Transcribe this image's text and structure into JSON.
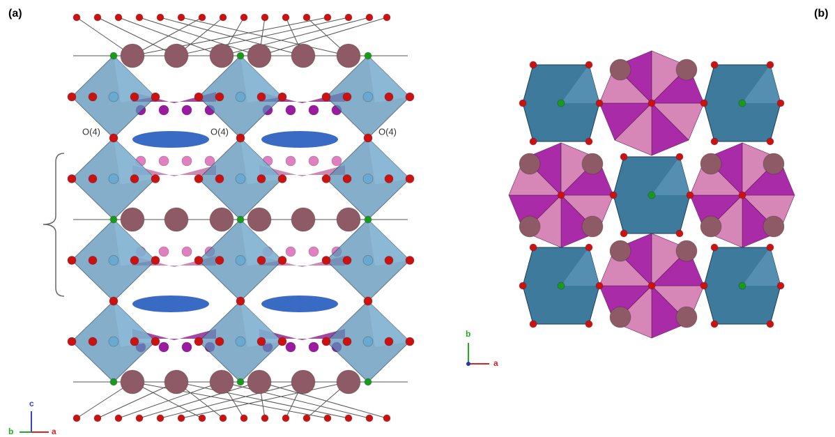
{
  "panel_a": {
    "label": "(a)",
    "site_labels": [
      "O(4)",
      "O(4)",
      "O(4)"
    ],
    "axes": {
      "vertical": "c",
      "left": "b",
      "right": "a"
    }
  },
  "panel_b": {
    "label": "(b)",
    "axes": {
      "vertical": "b",
      "right": "a"
    }
  }
}
